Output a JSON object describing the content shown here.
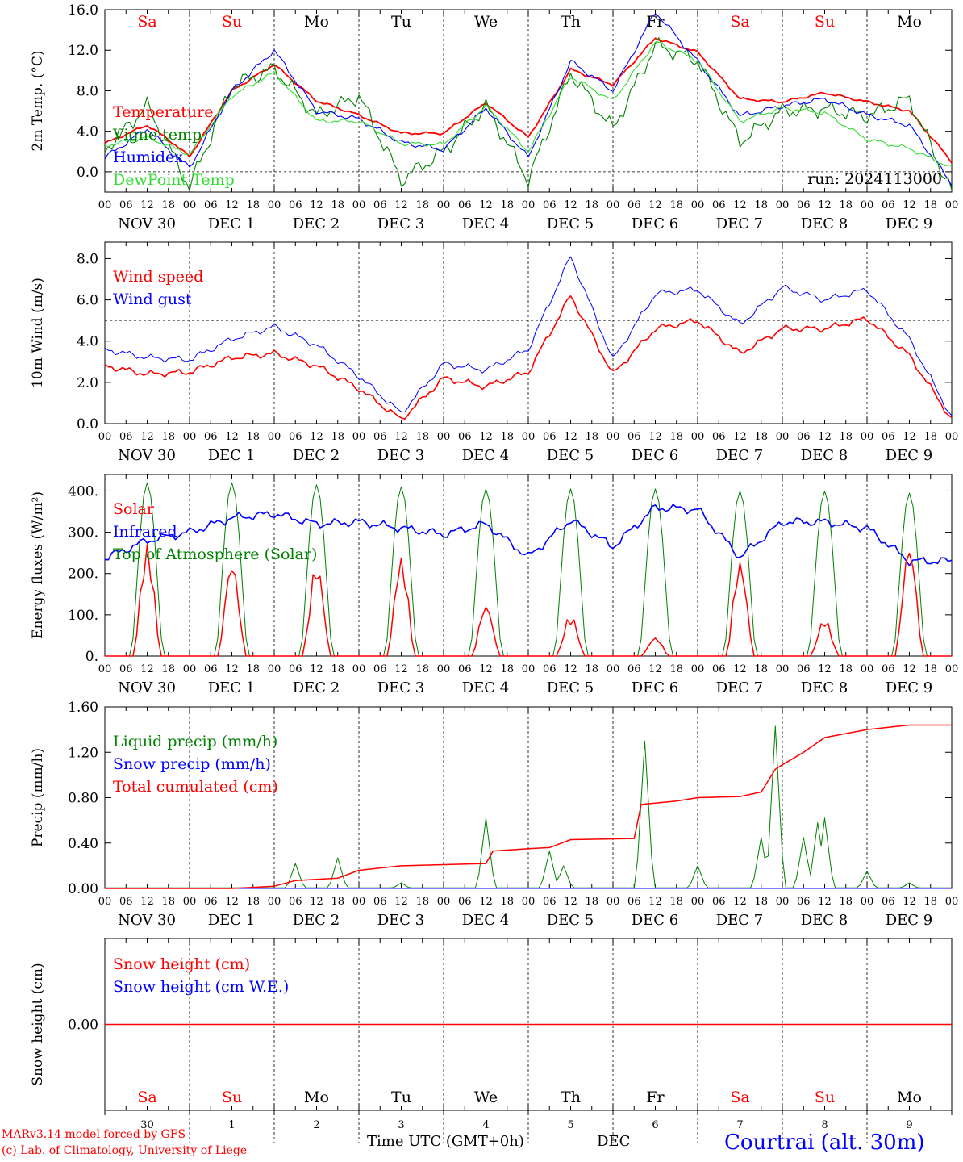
{
  "colors": {
    "red": "#ff0000",
    "green": "#008000",
    "blue": "#0000ff",
    "lightgreen": "#33dd33",
    "black": "#000000"
  },
  "days": [
    "Sa",
    "Su",
    "Mo",
    "Tu",
    "We",
    "Th",
    "Fr",
    "Sa",
    "Su",
    "Mo"
  ],
  "weekend_flags": [
    true,
    true,
    false,
    false,
    false,
    false,
    false,
    true,
    true,
    false
  ],
  "hour_ticks": [
    "00",
    "06",
    "12",
    "18"
  ],
  "date_labels": [
    "NOV 30",
    "DEC  1",
    "DEC  2",
    "DEC  3",
    "DEC  4",
    "DEC  5",
    "DEC  6",
    "DEC  7",
    "DEC  8",
    "DEC  9"
  ],
  "bottom_day_numbers": [
    "30",
    "1",
    "2",
    "3",
    "4",
    "5",
    "6",
    "7",
    "8",
    "9"
  ],
  "footer": {
    "credit1": "MARv3.14 model forced by GFS",
    "credit2": "(c) Lab. of Climatology, University of Liege",
    "xlabel": "Time UTC (GMT+0h)",
    "month": "DEC",
    "station": "Courtrai (alt. 30m)"
  },
  "chart_data": [
    {
      "type": "line",
      "ylabel": "2m Temp. (°C)",
      "ylim": [
        -2.0,
        16.0
      ],
      "yticks": [
        "0.0",
        "4.0",
        "8.0",
        "12.0",
        "16.0"
      ],
      "ytick_values": [
        0,
        4,
        8,
        12,
        16
      ],
      "annotation": "run: 2024113000",
      "x_hours": [
        0,
        12,
        18,
        24,
        36,
        48,
        60,
        72,
        84,
        96,
        108,
        120,
        132,
        144,
        156,
        168,
        180,
        192,
        204,
        216,
        228,
        240
      ],
      "series": [
        {
          "name": "Temperature",
          "color": "red",
          "values": [
            2.8,
            4.6,
            3.2,
            1.5,
            8.0,
            10.6,
            7.0,
            5.6,
            3.8,
            3.8,
            6.8,
            3.4,
            10.1,
            8.6,
            13.2,
            11.8,
            7.2,
            6.9,
            7.8,
            6.9,
            6.0,
            1.0
          ]
        },
        {
          "name": "Vigne temp",
          "color": "green",
          "values": [
            2.2,
            6.5,
            2.5,
            -1.5,
            8.5,
            10.2,
            5.5,
            7.5,
            -0.8,
            2.0,
            6.5,
            -0.8,
            9.8,
            4.2,
            12.5,
            11.0,
            3.0,
            6.0,
            6.2,
            5.5,
            7.2,
            -2.0
          ]
        },
        {
          "name": "Humidex",
          "color": "blue",
          "values": [
            1.4,
            4.3,
            2.2,
            0.4,
            8.0,
            12.0,
            6.0,
            5.2,
            2.9,
            2.2,
            6.3,
            1.4,
            10.9,
            8.0,
            15.8,
            10.9,
            5.5,
            6.5,
            7.2,
            5.6,
            4.6,
            -1.2
          ]
        },
        {
          "name": "DewPoint Temp",
          "color": "lightgreen",
          "values": [
            2.6,
            3.4,
            2.6,
            1.7,
            7.5,
            9.8,
            5.0,
            5.0,
            2.8,
            2.7,
            6.5,
            2.0,
            9.4,
            7.0,
            12.8,
            11.0,
            5.0,
            6.3,
            5.8,
            3.2,
            2.3,
            0.4
          ]
        }
      ]
    },
    {
      "type": "line",
      "ylabel": "10m Wind (m/s)",
      "ylim": [
        0,
        8.8
      ],
      "yticks": [
        "0.0",
        "2.0",
        "4.0",
        "6.0",
        "8.0"
      ],
      "ytick_values": [
        0,
        2,
        4,
        6,
        8
      ],
      "ref_line": 5.0,
      "x_hours": [
        0,
        12,
        24,
        36,
        48,
        60,
        72,
        84,
        96,
        108,
        120,
        132,
        144,
        156,
        168,
        180,
        192,
        204,
        216,
        228,
        240
      ],
      "series": [
        {
          "name": "Wind speed",
          "color": "red",
          "values": [
            2.8,
            2.4,
            2.5,
            3.2,
            3.4,
            2.8,
            1.7,
            0.2,
            2.2,
            1.8,
            2.5,
            6.2,
            2.4,
            4.6,
            5.0,
            3.4,
            4.6,
            4.6,
            5.1,
            3.3,
            0.2
          ]
        },
        {
          "name": "Wind gust",
          "color": "blue",
          "values": [
            3.6,
            3.2,
            3.1,
            4.1,
            4.7,
            3.8,
            2.3,
            0.5,
            2.9,
            2.6,
            3.6,
            8.1,
            3.1,
            6.3,
            6.5,
            4.8,
            6.6,
            6.0,
            6.5,
            4.1,
            0.3
          ]
        }
      ]
    },
    {
      "type": "line",
      "ylabel": "Energy fluxes (W/m²)",
      "ylim": [
        0,
        440
      ],
      "yticks": [
        "0.",
        "100.",
        "200.",
        "300.",
        "400."
      ],
      "ytick_values": [
        0,
        100,
        200,
        300,
        400
      ],
      "x_hours": [
        0,
        12,
        24,
        36,
        48,
        60,
        72,
        84,
        96,
        108,
        120,
        132,
        144,
        156,
        168,
        180,
        192,
        204,
        216,
        228,
        240
      ],
      "series": [
        {
          "name": "Solar",
          "color": "red",
          "peaks": [
            270,
            230,
            225,
            240,
            125,
            100,
            45,
            230,
            90,
            270
          ]
        },
        {
          "name": "Infrared",
          "color": "blue",
          "values": [
            237,
            280,
            300,
            335,
            345,
            320,
            325,
            310,
            295,
            320,
            240,
            330,
            265,
            360,
            355,
            240,
            325,
            325,
            310,
            230,
            230
          ]
        },
        {
          "name": "Top of Atmosphere (Solar)",
          "color": "green",
          "peaks": [
            420,
            420,
            415,
            410,
            405,
            405,
            405,
            400,
            400,
            395
          ]
        }
      ]
    },
    {
      "type": "line",
      "ylabel": "Precip (mm/h)",
      "ylim": [
        0,
        1.6
      ],
      "yticks": [
        "0.00",
        "0.40",
        "0.80",
        "1.20",
        "1.60"
      ],
      "ytick_values": [
        0,
        0.4,
        0.8,
        1.2,
        1.6
      ],
      "series": [
        {
          "name": "Liquid precip (mm/h)",
          "color": "green",
          "spikes": [
            [
              54,
              0.22
            ],
            [
              66,
              0.27
            ],
            [
              84,
              0.05
            ],
            [
              108,
              0.62
            ],
            [
              126,
              0.33
            ],
            [
              130,
              0.2
            ],
            [
              153,
              1.3
            ],
            [
              168,
              0.2
            ],
            [
              186,
              0.45
            ],
            [
              190,
              1.43
            ],
            [
              198,
              0.45
            ],
            [
              202,
              0.58
            ],
            [
              204,
              0.62
            ],
            [
              216,
              0.15
            ],
            [
              228,
              0.05
            ]
          ]
        },
        {
          "name": "Snow precip (mm/h)",
          "color": "blue",
          "values": [
            0
          ]
        },
        {
          "name": "Total cumulated (cm)",
          "color": "red",
          "x_hours": [
            0,
            36,
            48,
            54,
            66,
            72,
            84,
            96,
            108,
            110,
            120,
            126,
            132,
            150,
            152,
            162,
            168,
            180,
            186,
            190,
            192,
            198,
            204,
            216,
            228,
            240
          ],
          "values": [
            0,
            0,
            0.02,
            0.07,
            0.09,
            0.16,
            0.2,
            0.21,
            0.22,
            0.33,
            0.35,
            0.36,
            0.43,
            0.44,
            0.74,
            0.77,
            0.8,
            0.81,
            0.85,
            1.05,
            1.09,
            1.2,
            1.33,
            1.4,
            1.44,
            1.44
          ]
        }
      ]
    },
    {
      "type": "line",
      "ylabel": "Snow height (cm)",
      "ylim": [
        -1,
        1
      ],
      "yticks": [
        "0.00"
      ],
      "ytick_values": [
        0
      ],
      "series": [
        {
          "name": "Snow height (cm)",
          "color": "red",
          "values": [
            0
          ]
        },
        {
          "name": "Snow height (cm W.E.)",
          "color": "blue",
          "values": [
            0
          ]
        }
      ]
    }
  ]
}
